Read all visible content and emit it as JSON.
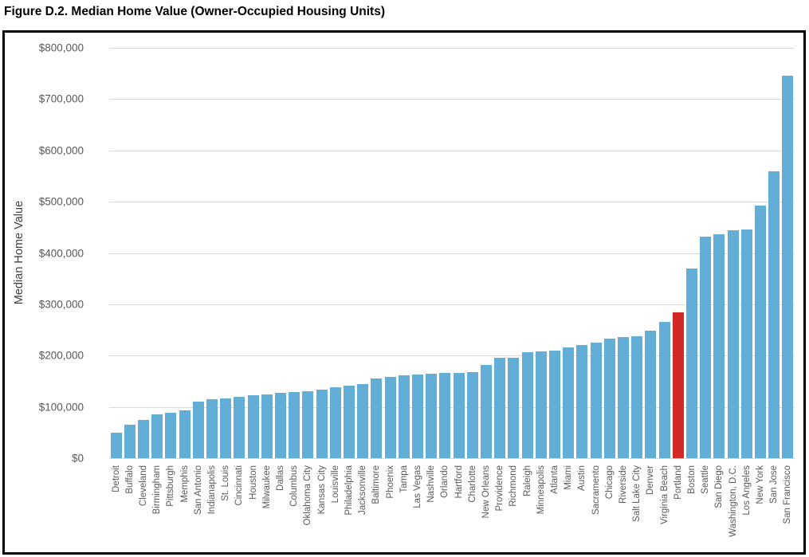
{
  "figure": {
    "title": "Figure D.2. Median Home Value (Owner-Occupied Housing Units)"
  },
  "colors": {
    "bar": "#63aed6",
    "highlight": "#d22926",
    "gridline": "#d9d9d9",
    "axis_text": "#595959",
    "border": "#000000"
  },
  "chart_data": {
    "type": "bar",
    "title": "Figure D.2. Median Home Value (Owner-Occupied Housing Units)",
    "xlabel": "",
    "ylabel": "Median Home Value",
    "ylim": [
      0,
      800000
    ],
    "ytick_step": 100000,
    "ytick_labels": [
      "$0",
      "$100,000",
      "$200,000",
      "$300,000",
      "$400,000",
      "$500,000",
      "$600,000",
      "$700,000",
      "$800,000"
    ],
    "grid": "horizontal",
    "legend": "none",
    "highlight_category": "Portland",
    "highlight_index": 41,
    "categories": [
      "Detroit",
      "Buffalo",
      "Cleveland",
      "Birmingham",
      "Pittsburgh",
      "Memphis",
      "San Antonio",
      "Indianapolis",
      "St. Louis",
      "Cincinnati",
      "Houston",
      "Milwaukee",
      "Dallas",
      "Columbus",
      "Oklahoma City",
      "Kansas City",
      "Louisville",
      "Philadelphia",
      "Jacksonville",
      "Baltimore",
      "Phoenix",
      "Tampa",
      "Las Vegas",
      "Nashville",
      "Orlando",
      "Hartford",
      "Charlotte",
      "New Orleans",
      "Providence",
      "Richmond",
      "Raleigh",
      "Minneapolis",
      "Atlanta",
      "Miami",
      "Austin",
      "Sacramento",
      "Chicago",
      "Riverside",
      "Salt Lake City",
      "Denver",
      "Virginia Beach",
      "Portland",
      "Boston",
      "Seattle",
      "San Diego",
      "Washington, D.C.",
      "Los Angeles",
      "New York",
      "San Jose",
      "San Francisco"
    ],
    "values": [
      50000,
      65000,
      75000,
      85000,
      88000,
      94000,
      111000,
      115000,
      117000,
      119000,
      122000,
      125000,
      127000,
      129000,
      131000,
      133000,
      138000,
      141000,
      145000,
      156000,
      158000,
      161000,
      163000,
      164000,
      166000,
      167000,
      168000,
      181000,
      195000,
      196000,
      206000,
      208000,
      209000,
      216000,
      220000,
      226000,
      233000,
      236000,
      238000,
      248000,
      265000,
      285000,
      370000,
      432000,
      437000,
      445000,
      446000,
      492000,
      560000,
      745000
    ]
  }
}
